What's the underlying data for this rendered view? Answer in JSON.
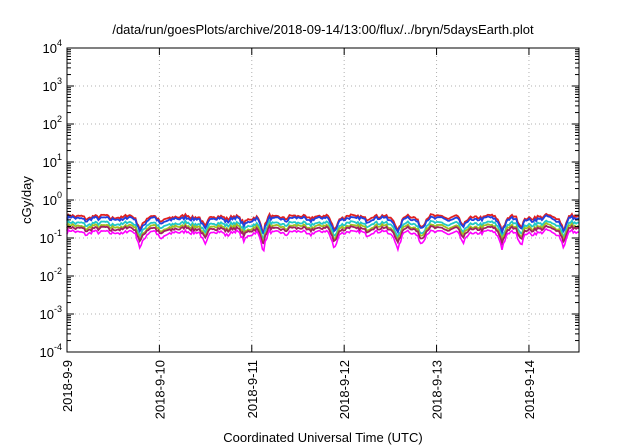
{
  "chart_data": {
    "type": "line",
    "title": "/data/run/goesPlots/archive/2018-09-14/13:00/flux/../bryn/5daysEarth.plot",
    "xlabel": "Coordinated Universal Time (UTC)",
    "ylabel": "cGy/day",
    "yscale": "log",
    "ylim": [
      0.0001,
      10000
    ],
    "xlim": [
      "2018-09-09",
      "2018-09-14 13:00"
    ],
    "grid": true,
    "y_ticks": [
      {
        "base": "10",
        "exp": "-4",
        "value": 0.0001
      },
      {
        "base": "10",
        "exp": "-3",
        "value": 0.001
      },
      {
        "base": "10",
        "exp": "-2",
        "value": 0.01
      },
      {
        "base": "10",
        "exp": "-1",
        "value": 0.1
      },
      {
        "base": "10",
        "exp": "0",
        "value": 1
      },
      {
        "base": "10",
        "exp": "1",
        "value": 10
      },
      {
        "base": "10",
        "exp": "2",
        "value": 100
      },
      {
        "base": "10",
        "exp": "3",
        "value": 1000
      },
      {
        "base": "10",
        "exp": "4",
        "value": 10000
      }
    ],
    "x_ticks": [
      "2018-9-9",
      "2018-9-10",
      "2018-9-11",
      "2018-9-12",
      "2018-9-13",
      "2018-9-14"
    ],
    "series": [
      {
        "color": "#e02020",
        "level": 0.36
      },
      {
        "color": "#2040e0",
        "level": 0.32
      },
      {
        "color": "#20c8c8",
        "level": 0.24
      },
      {
        "color": "#a0c020",
        "level": 0.2
      },
      {
        "color": "#a02060",
        "level": 0.175
      },
      {
        "color": "#ff00ff",
        "level": 0.14
      }
    ],
    "dips": [
      {
        "date": "2018-09-09 19:00",
        "depth": 0.55
      },
      {
        "date": "2018-09-10 00:30",
        "depth": 0.35
      },
      {
        "date": "2018-09-10 12:00",
        "depth": 0.45
      },
      {
        "date": "2018-09-10 22:00",
        "depth": 0.4
      },
      {
        "date": "2018-09-11 03:00",
        "depth": 0.6
      },
      {
        "date": "2018-09-11 21:30",
        "depth": 0.55
      },
      {
        "date": "2018-09-12 14:00",
        "depth": 0.6
      },
      {
        "date": "2018-09-12 20:00",
        "depth": 0.45
      },
      {
        "date": "2018-09-13 07:00",
        "depth": 0.5
      },
      {
        "date": "2018-09-13 17:00",
        "depth": 0.55
      },
      {
        "date": "2018-09-13 22:00",
        "depth": 0.5
      },
      {
        "date": "2018-09-14 09:00",
        "depth": 0.5
      }
    ]
  }
}
